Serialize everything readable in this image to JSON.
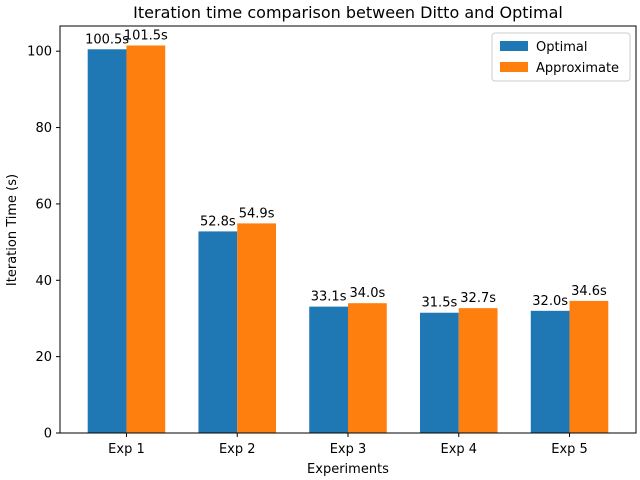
{
  "chart_data": {
    "type": "bar",
    "title": "Iteration time comparison between Ditto and Optimal",
    "xlabel": "Experiments",
    "ylabel": "Iteration Time (s)",
    "categories": [
      "Exp 1",
      "Exp 2",
      "Exp 3",
      "Exp 4",
      "Exp 5"
    ],
    "series": [
      {
        "name": "Optimal",
        "color": "#1f77b4",
        "values": [
          100.5,
          52.8,
          33.1,
          31.5,
          32.0
        ],
        "labels": [
          "100.5s",
          "52.8s",
          "33.1s",
          "31.5s",
          "32.0s"
        ]
      },
      {
        "name": "Approximate",
        "color": "#ff7f0e",
        "values": [
          101.5,
          54.9,
          34.0,
          32.7,
          34.6
        ],
        "labels": [
          "101.5s",
          "54.9s",
          "34.0s",
          "32.7s",
          "34.6s"
        ]
      }
    ],
    "ylim": [
      0,
      106.6
    ],
    "yticks": [
      0,
      20,
      40,
      60,
      80,
      100
    ],
    "grid": false,
    "legend_position": "top-right"
  }
}
